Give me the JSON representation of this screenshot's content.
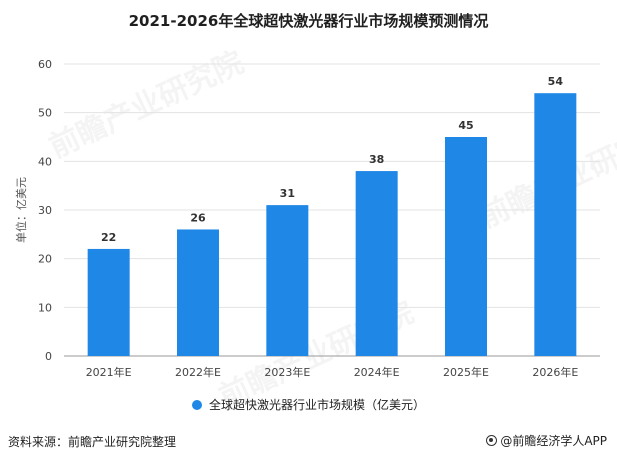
{
  "title": "2021-2026年全球超快激光器行业市场规模预测情况",
  "chart_data": {
    "type": "bar",
    "categories": [
      "2021年E",
      "2022年E",
      "2023年E",
      "2024年E",
      "2025年E",
      "2026年E"
    ],
    "values": [
      22,
      26,
      31,
      38,
      45,
      54
    ],
    "title": "2021-2026年全球超快激光器行业市场规模预测情况",
    "xlabel": "",
    "ylabel": "单位：亿美元",
    "ylim": [
      0,
      60
    ],
    "yticks": [
      0,
      10,
      20,
      30,
      40,
      50,
      60
    ],
    "grid": true,
    "legend_position": "bottom",
    "series": [
      {
        "name": "全球超快激光器行业市场规模（亿美元）",
        "values": [
          22,
          26,
          31,
          38,
          45,
          54
        ]
      }
    ],
    "bar_color": "#1f87e5"
  },
  "legend": {
    "label": "全球超快激光器行业市场规模（亿美元）"
  },
  "footer": {
    "source": "资料来源：前瞻产业研究院整理",
    "brand": "@前瞻经济学人APP"
  },
  "watermark": {
    "text": "前瞻产业研究院"
  }
}
